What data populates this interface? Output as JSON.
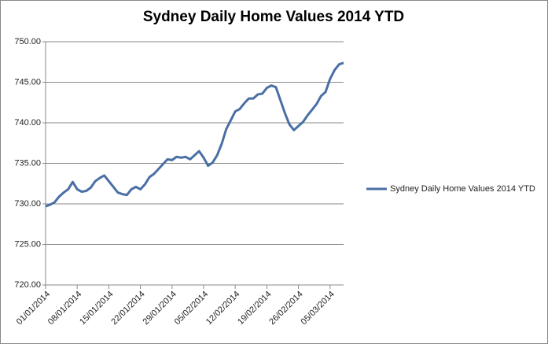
{
  "chart_data": {
    "type": "line",
    "title": "Sydney Daily Home Values 2014 YTD",
    "categories": [
      "01/01/2014",
      null,
      null,
      null,
      null,
      null,
      null,
      "08/01/2014",
      null,
      null,
      null,
      null,
      null,
      null,
      "15/01/2014",
      null,
      null,
      null,
      null,
      null,
      null,
      "22/01/2014",
      null,
      null,
      null,
      null,
      null,
      null,
      "29/01/2014",
      null,
      null,
      null,
      null,
      null,
      null,
      "05/02/2014",
      null,
      null,
      null,
      null,
      null,
      null,
      "12/02/2014",
      null,
      null,
      null,
      null,
      null,
      null,
      "19/02/2014",
      null,
      null,
      null,
      null,
      null,
      null,
      "26/02/2014",
      null,
      null,
      null,
      null,
      null,
      null,
      "05/03/2014",
      null,
      null,
      null
    ],
    "series": [
      {
        "name": "Sydney Daily Home Values 2014 YTD",
        "color": "#4a6fa5",
        "values": [
          729.7,
          729.9,
          730.2,
          730.9,
          731.4,
          731.8,
          732.7,
          731.8,
          731.5,
          731.6,
          732.0,
          732.8,
          733.2,
          733.5,
          732.8,
          732.1,
          731.4,
          731.2,
          731.1,
          731.8,
          732.1,
          731.8,
          732.4,
          733.3,
          733.7,
          734.3,
          734.9,
          735.5,
          735.4,
          735.8,
          735.7,
          735.8,
          735.5,
          736.0,
          736.5,
          735.7,
          734.7,
          735.1,
          736.0,
          737.4,
          739.2,
          740.3,
          741.4,
          741.7,
          742.4,
          743.0,
          743.0,
          743.5,
          743.6,
          744.3,
          744.6,
          744.4,
          742.8,
          741.2,
          739.8,
          739.1,
          739.6,
          740.1,
          740.9,
          741.6,
          742.3,
          743.3,
          743.8,
          745.4,
          746.5,
          747.2,
          747.4
        ]
      }
    ],
    "ylim": [
      720,
      750
    ],
    "yticks": [
      {
        "value": 720,
        "label": "720.00"
      },
      {
        "value": 725,
        "label": "725.00"
      },
      {
        "value": 730,
        "label": "730.00"
      },
      {
        "value": 735,
        "label": "735.00"
      },
      {
        "value": 740,
        "label": "740.00"
      },
      {
        "value": 745,
        "label": "745.00"
      },
      {
        "value": 750,
        "label": "750.00"
      }
    ],
    "grid": true,
    "legend": "right"
  }
}
